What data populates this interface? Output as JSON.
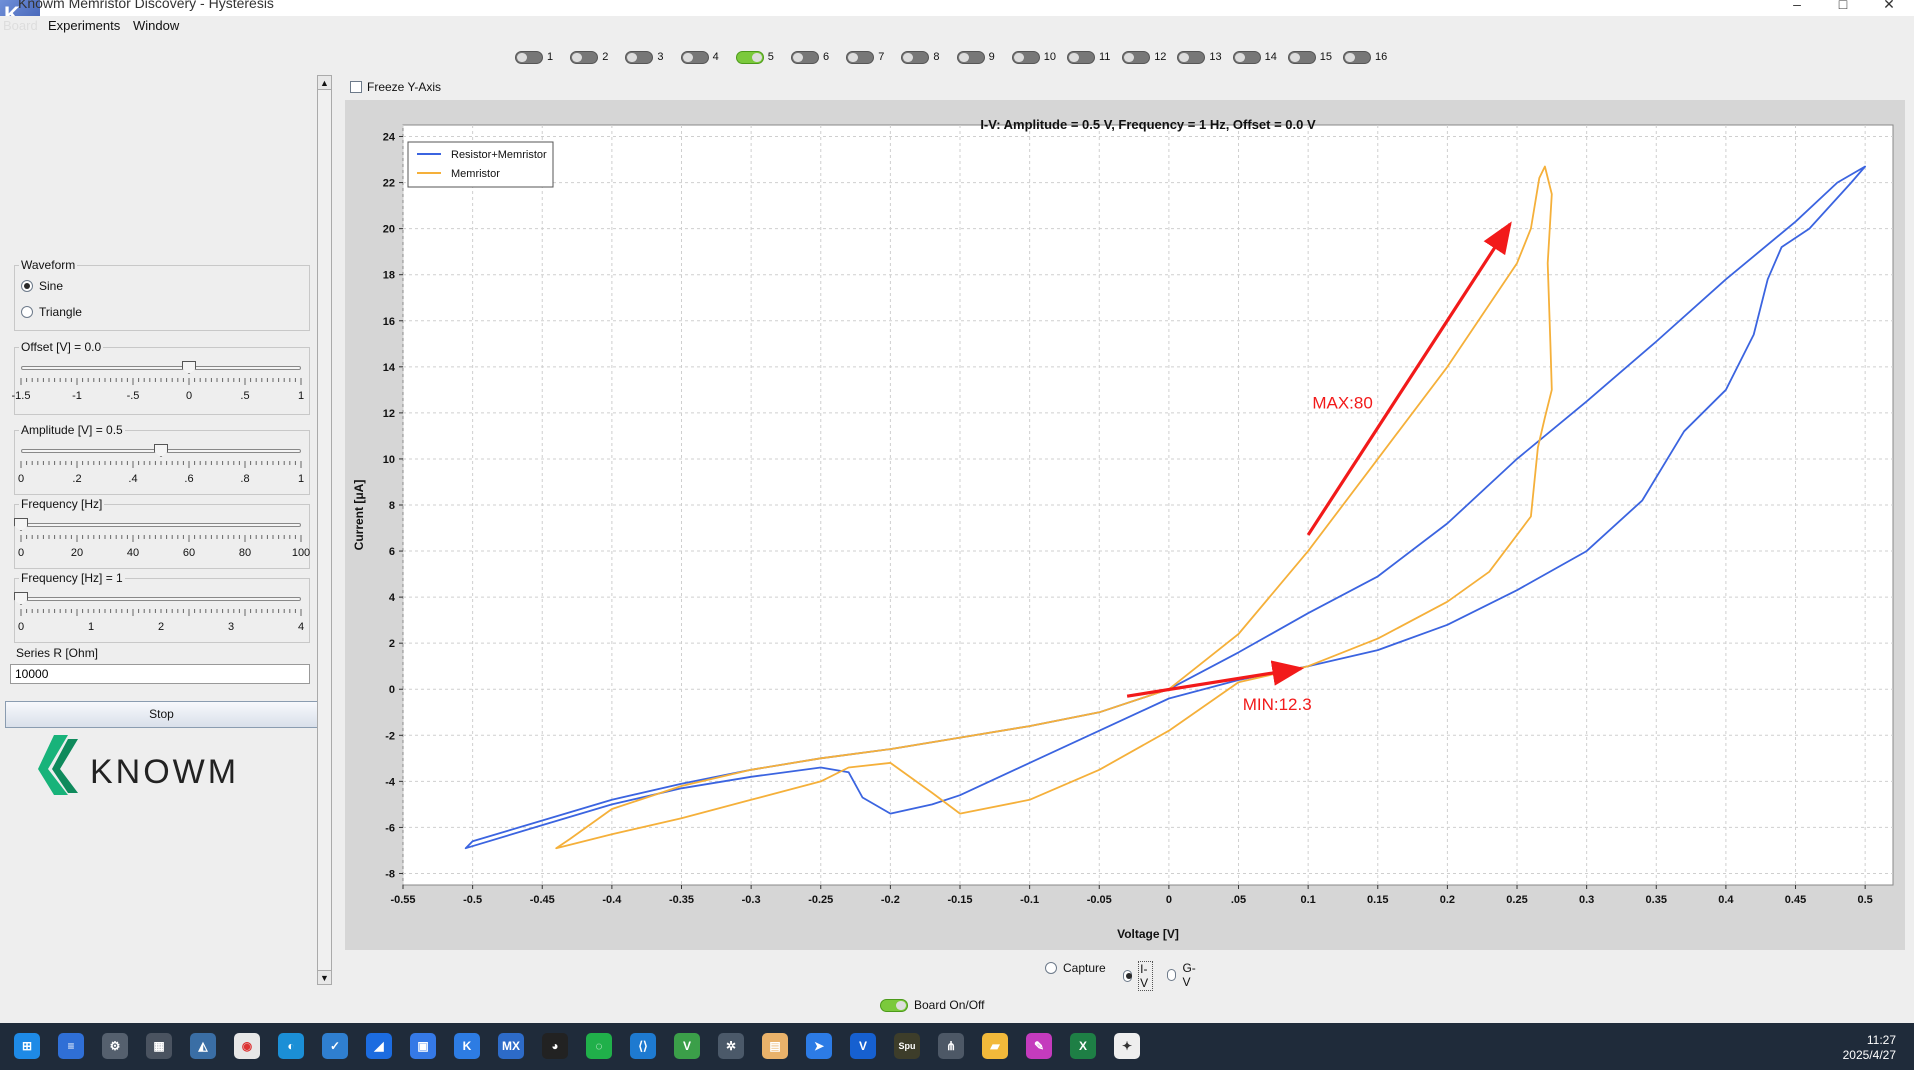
{
  "window": {
    "title": "Knowm Memristor Discovery - Hysteresis",
    "controls": [
      "–",
      "□",
      "✕"
    ]
  },
  "menu": {
    "items": [
      "Board",
      "Experiments",
      "Window"
    ]
  },
  "channels": [
    {
      "label": "1",
      "on": false
    },
    {
      "label": "2",
      "on": false
    },
    {
      "label": "3",
      "on": false
    },
    {
      "label": "4",
      "on": false
    },
    {
      "label": "5",
      "on": true
    },
    {
      "label": "6",
      "on": false
    },
    {
      "label": "7",
      "on": false
    },
    {
      "label": "8",
      "on": false
    },
    {
      "label": "9",
      "on": false
    },
    {
      "label": "10",
      "on": false
    },
    {
      "label": "11",
      "on": false
    },
    {
      "label": "12",
      "on": false
    },
    {
      "label": "13",
      "on": false
    },
    {
      "label": "14",
      "on": false
    },
    {
      "label": "15",
      "on": false
    },
    {
      "label": "16",
      "on": false
    }
  ],
  "waveform": {
    "title": "Waveform",
    "options": [
      "Sine",
      "Triangle"
    ],
    "selected": "Sine"
  },
  "offset": {
    "title": "Offset [V] = 0.0",
    "ticks": [
      "-1.5",
      "-1",
      "-.5",
      "0",
      ".5",
      "1"
    ],
    "value": 0.0,
    "min": -1.5,
    "max": 1.0
  },
  "amplitude": {
    "title": "Amplitude [V] = 0.5",
    "ticks": [
      "0",
      ".2",
      ".4",
      ".6",
      ".8",
      "1"
    ],
    "value": 0.5,
    "min": 0,
    "max": 1.0
  },
  "frequency_range": {
    "title": "Frequency [Hz]",
    "ticks": [
      "0",
      "20",
      "40",
      "60",
      "80",
      "100"
    ],
    "value": 0,
    "min": 0,
    "max": 100
  },
  "frequency": {
    "title": "Frequency [Hz] = 1",
    "ticks": [
      "0",
      "1",
      "2",
      "3",
      "4"
    ],
    "value": 0,
    "min": 0,
    "max": 4
  },
  "series_r": {
    "label": "Series R [Ohm]",
    "value": "10000"
  },
  "stop_label": "Stop",
  "logo_text": "KNOWM",
  "freeze_label": "Freeze Y-Axis",
  "view_modes": {
    "options": [
      "Capture",
      "I-V",
      "G-V"
    ],
    "selected": "I-V"
  },
  "board_toggle_label": "Board On/Off",
  "taskbar": {
    "time": "11:27",
    "date": "2025/4/27"
  },
  "colors": {
    "resistor_memristor": "#3b64e0",
    "memristor": "#f5b03a",
    "annotation": "#f21a1a"
  },
  "chart_data": {
    "type": "line",
    "title": "I-V: Amplitude = 0.5 V, Frequency = 1 Hz, Offset = 0.0 V",
    "xlabel": "Voltage [V]",
    "ylabel": "Current [μA]",
    "xlim": [
      -0.55,
      0.52
    ],
    "ylim": [
      -8.5,
      24.5
    ],
    "xticks": [
      "-0.55",
      "-0.5",
      "-0.45",
      "-0.4",
      "-0.35",
      "-0.3",
      "-0.25",
      "-0.2",
      "-0.15",
      "-0.1",
      "-0.05",
      "0",
      ".05",
      "0.1",
      "0.15",
      "0.2",
      "0.25",
      "0.3",
      "0.35",
      "0.4",
      "0.45",
      "0.5"
    ],
    "xtick_values": [
      -0.55,
      -0.5,
      -0.45,
      -0.4,
      -0.35,
      -0.3,
      -0.25,
      -0.2,
      -0.15,
      -0.1,
      -0.05,
      0,
      0.05,
      0.1,
      0.15,
      0.2,
      0.25,
      0.3,
      0.35,
      0.4,
      0.45,
      0.5
    ],
    "yticks": [
      -8,
      -6,
      -4,
      -2,
      0,
      2,
      4,
      6,
      8,
      10,
      12,
      14,
      16,
      18,
      20,
      22,
      24
    ],
    "grid": true,
    "legend_position": "top-left",
    "series": [
      {
        "name": "Resistor+Memristor",
        "color": "#3b64e0",
        "x": [
          0.1,
          0.15,
          0.2,
          0.25,
          0.3,
          0.34,
          0.37,
          0.4,
          0.42,
          0.43,
          0.44,
          0.46,
          0.49,
          0.5,
          0.48,
          0.45,
          0.4,
          0.35,
          0.3,
          0.25,
          0.2,
          0.15,
          0.1,
          0.05,
          0.0,
          -0.05,
          -0.1,
          -0.15,
          -0.2,
          -0.25,
          -0.3,
          -0.35,
          -0.4,
          -0.45,
          -0.5,
          -0.505,
          -0.45,
          -0.4,
          -0.35,
          -0.3,
          -0.25,
          -0.23,
          -0.22,
          -0.2,
          -0.17,
          -0.15,
          -0.1,
          -0.05,
          0.0,
          0.05,
          0.1
        ],
        "y": [
          1.0,
          1.7,
          2.8,
          4.3,
          6.0,
          8.2,
          11.2,
          13.0,
          15.4,
          17.8,
          19.2,
          20.0,
          22.0,
          22.7,
          22.0,
          20.3,
          17.8,
          15.1,
          12.5,
          10.0,
          7.2,
          4.9,
          3.3,
          1.6,
          0.0,
          -1.0,
          -1.6,
          -2.1,
          -2.6,
          -3.0,
          -3.5,
          -4.1,
          -4.8,
          -5.7,
          -6.6,
          -6.9,
          -5.9,
          -5.0,
          -4.3,
          -3.8,
          -3.4,
          -3.6,
          -4.7,
          -5.4,
          -5.0,
          -4.6,
          -3.2,
          -1.8,
          -0.4,
          0.4,
          1.0
        ]
      },
      {
        "name": "Memristor",
        "color": "#f5b03a",
        "x": [
          0.1,
          0.15,
          0.2,
          0.23,
          0.26,
          0.265,
          0.27,
          0.275,
          0.274,
          0.272,
          0.275,
          0.27,
          0.266,
          0.26,
          0.25,
          0.2,
          0.15,
          0.1,
          0.05,
          0.0,
          -0.05,
          -0.1,
          -0.15,
          -0.2,
          -0.25,
          -0.3,
          -0.35,
          -0.4,
          -0.43,
          -0.44,
          -0.4,
          -0.35,
          -0.3,
          -0.25,
          -0.23,
          -0.2,
          -0.17,
          -0.15,
          -0.1,
          -0.05,
          0.0,
          0.05,
          0.1
        ],
        "y": [
          1.0,
          2.2,
          3.8,
          5.1,
          7.5,
          10.5,
          11.8,
          13.0,
          15.0,
          18.5,
          21.5,
          22.7,
          22.2,
          20.0,
          18.5,
          14.0,
          10.0,
          6.0,
          2.4,
          0.0,
          -1.0,
          -1.6,
          -2.1,
          -2.6,
          -3.0,
          -3.5,
          -4.2,
          -5.2,
          -6.5,
          -6.9,
          -6.3,
          -5.6,
          -4.8,
          -4.0,
          -3.4,
          -3.2,
          -4.5,
          -5.4,
          -4.8,
          -3.5,
          -1.8,
          0.3,
          1.0
        ]
      }
    ],
    "annotations": [
      {
        "text": "MAX:80",
        "x": 0.103,
        "y": 12.2
      },
      {
        "text": "MIN:12.3",
        "x": 0.053,
        "y": -0.9
      }
    ],
    "arrows": [
      {
        "x1": 0.1,
        "y1": 6.7,
        "x2": 0.245,
        "y2": 20.2
      },
      {
        "x1": -0.03,
        "y1": -0.3,
        "x2": 0.095,
        "y2": 0.9
      }
    ]
  }
}
